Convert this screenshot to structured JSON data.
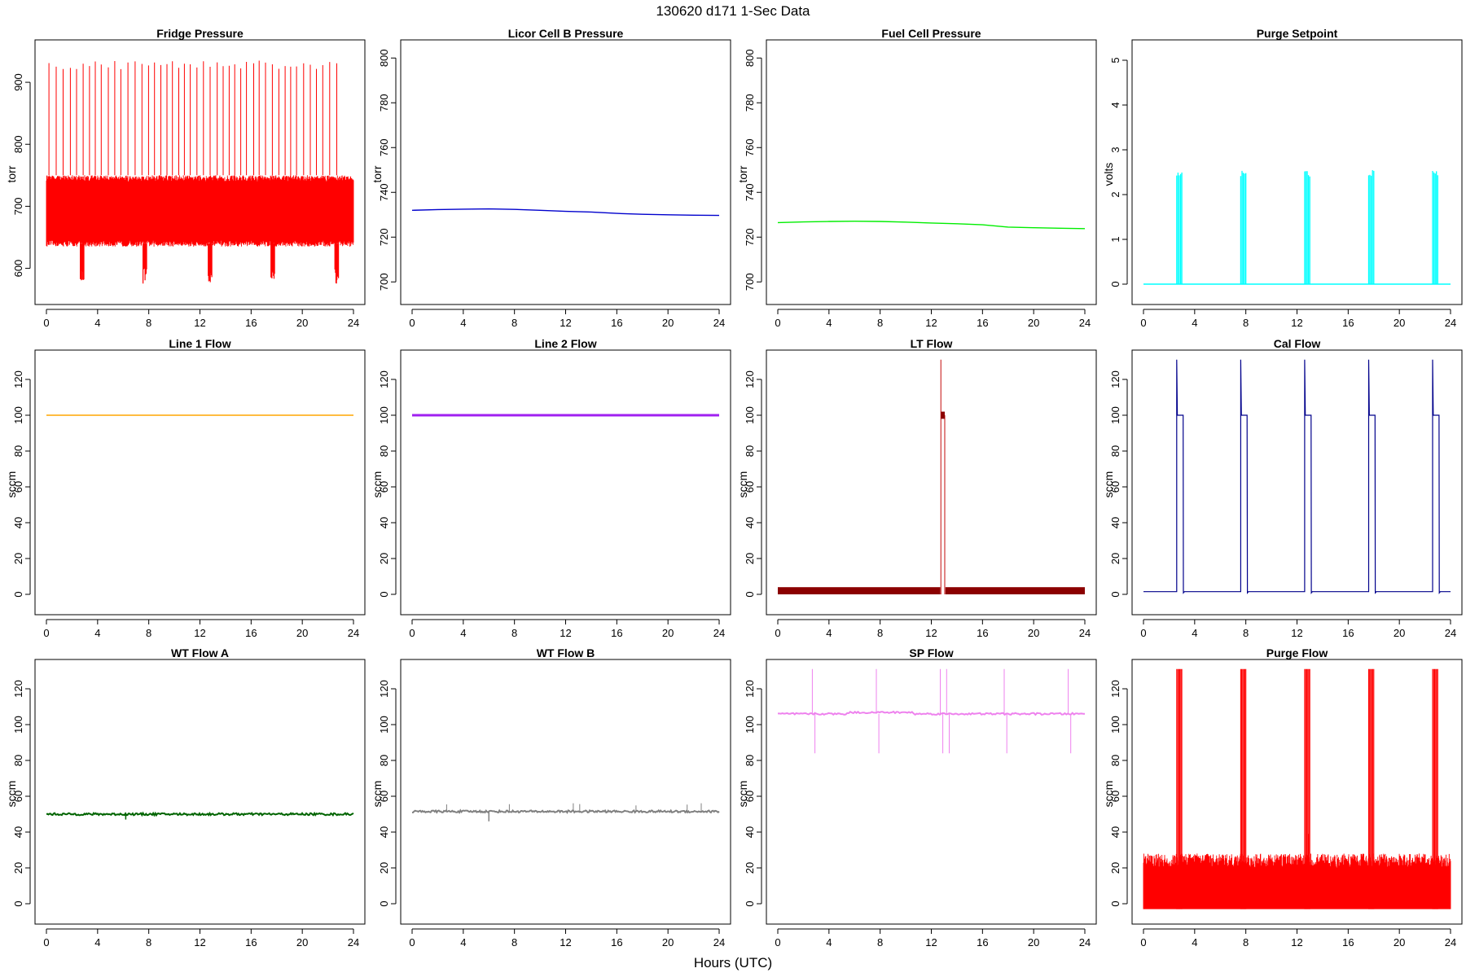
{
  "figure": {
    "title": "130620   d171   1-Sec Data",
    "xlabel": "Hours (UTC)"
  },
  "chart_data": [
    {
      "title": "Fridge Pressure",
      "ylabel": "torr",
      "type": "line",
      "color": "#ff0000",
      "kind": "fridge",
      "xlim": [
        0,
        24
      ],
      "ylim": [
        560,
        950
      ],
      "xticks": [
        0,
        4,
        8,
        12,
        16,
        20,
        24
      ],
      "yticks": [
        600,
        700,
        800,
        900
      ],
      "band": [
        635,
        750
      ],
      "spikes_peak": 935,
      "dips_at": [
        2.8,
        7.7,
        12.8,
        17.7,
        22.7
      ],
      "dips_min": 575
    },
    {
      "title": "Licor Cell B Pressure",
      "ylabel": "torr",
      "type": "line",
      "color": "#0000cd",
      "kind": "line",
      "xlim": [
        0,
        24
      ],
      "ylim": [
        695,
        803
      ],
      "xticks": [
        0,
        4,
        8,
        12,
        16,
        20,
        24
      ],
      "yticks": [
        700,
        720,
        740,
        760,
        780,
        800
      ],
      "x": [
        0,
        2,
        4,
        6,
        8,
        10,
        12,
        14,
        16,
        18,
        20,
        22,
        24
      ],
      "y": [
        732,
        732.3,
        732.5,
        732.6,
        732.4,
        732,
        731.5,
        731.2,
        730.6,
        730.2,
        730,
        729.8,
        729.7
      ]
    },
    {
      "title": "Fuel Cell Pressure",
      "ylabel": "torr",
      "type": "line",
      "color": "#00ee00",
      "kind": "line",
      "xlim": [
        0,
        24
      ],
      "ylim": [
        695,
        803
      ],
      "xticks": [
        0,
        4,
        8,
        12,
        16,
        20,
        24
      ],
      "yticks": [
        700,
        720,
        740,
        760,
        780,
        800
      ],
      "x": [
        0,
        2,
        4,
        6,
        8,
        10,
        12,
        14,
        16,
        18,
        20,
        22,
        24
      ],
      "y": [
        726.5,
        726.8,
        727,
        727.1,
        727,
        726.7,
        726.3,
        726,
        725.5,
        724.5,
        724.2,
        724,
        723.8
      ]
    },
    {
      "title": "Purge Setpoint",
      "ylabel": "volts",
      "type": "line",
      "color": "#00ffff",
      "kind": "pulses",
      "xlim": [
        0,
        24
      ],
      "ylim": [
        -0.2,
        5.2
      ],
      "xticks": [
        0,
        4,
        8,
        12,
        16,
        20,
        24
      ],
      "yticks": [
        0,
        1,
        2,
        3,
        4,
        5
      ],
      "baseline": 0,
      "pulse_level": 2.5,
      "pulse_starts": [
        2.6,
        7.6,
        12.6,
        17.6,
        22.6
      ],
      "pulse_width": 0.4
    },
    {
      "title": "Line 1 Flow",
      "ylabel": "sccm",
      "type": "line",
      "color": "#ffa500",
      "kind": "flat",
      "xlim": [
        0,
        24
      ],
      "ylim": [
        -5,
        130
      ],
      "xticks": [
        0,
        4,
        8,
        12,
        16,
        20,
        24
      ],
      "yticks": [
        0,
        20,
        40,
        60,
        80,
        100,
        120
      ],
      "level": 100
    },
    {
      "title": "Line 2 Flow",
      "ylabel": "sccm",
      "type": "line",
      "color": "#a020f0",
      "kind": "flat",
      "xlim": [
        0,
        24
      ],
      "ylim": [
        -5,
        130
      ],
      "xticks": [
        0,
        4,
        8,
        12,
        16,
        20,
        24
      ],
      "yticks": [
        0,
        20,
        40,
        60,
        80,
        100,
        120
      ],
      "level": 100
    },
    {
      "title": "LT Flow",
      "ylabel": "sccm",
      "type": "line",
      "color": "#8b0000",
      "kind": "ltflow",
      "xlim": [
        0,
        24
      ],
      "ylim": [
        -5,
        130
      ],
      "xticks": [
        0,
        4,
        8,
        12,
        16,
        20,
        24
      ],
      "yticks": [
        0,
        20,
        40,
        60,
        80,
        100,
        120
      ],
      "band": [
        0,
        4
      ],
      "spike_at": 12.8,
      "spike_level": 100
    },
    {
      "title": "Cal Flow",
      "ylabel": "sccm",
      "type": "line",
      "color": "#00008b",
      "kind": "calflow",
      "xlim": [
        0,
        24
      ],
      "ylim": [
        -5,
        130
      ],
      "xticks": [
        0,
        4,
        8,
        12,
        16,
        20,
        24
      ],
      "yticks": [
        0,
        20,
        40,
        60,
        80,
        100,
        120
      ],
      "baseline": 1.5,
      "pulse_level": 100,
      "pulse_starts": [
        2.6,
        7.6,
        12.6,
        17.6,
        22.6
      ],
      "pulse_width": 0.5
    },
    {
      "title": "WT Flow A",
      "ylabel": "sccm",
      "type": "line",
      "color": "#006400",
      "kind": "flatnoise",
      "xlim": [
        0,
        24
      ],
      "ylim": [
        -5,
        130
      ],
      "xticks": [
        0,
        4,
        8,
        12,
        16,
        20,
        24
      ],
      "yticks": [
        0,
        20,
        40,
        60,
        80,
        100,
        120
      ],
      "level": 50,
      "dip_at": 6.2,
      "dip_level": 47
    },
    {
      "title": "WT Flow B",
      "ylabel": "sccm",
      "type": "line",
      "color": "#808080",
      "kind": "flatnoise",
      "xlim": [
        0,
        24
      ],
      "ylim": [
        -5,
        130
      ],
      "xticks": [
        0,
        4,
        8,
        12,
        16,
        20,
        24
      ],
      "yticks": [
        0,
        20,
        40,
        60,
        80,
        100,
        120
      ],
      "level": 51.5,
      "dip_at": 6.0,
      "dip_level": 46,
      "spikes_at": [
        2.7,
        7.6,
        12.6,
        13.1,
        17.5,
        21.5,
        22.6
      ],
      "spike_level": 57
    },
    {
      "title": "SP Flow",
      "ylabel": "sccm",
      "type": "line",
      "color": "#ee82ee",
      "kind": "spflow",
      "xlim": [
        0,
        24
      ],
      "ylim": [
        -5,
        130
      ],
      "xticks": [
        0,
        4,
        8,
        12,
        16,
        20,
        24
      ],
      "yticks": [
        0,
        20,
        40,
        60,
        80,
        100,
        120
      ],
      "level": 106,
      "spikes_at": [
        2.7,
        7.7,
        12.7,
        13.2,
        17.7,
        22.7
      ],
      "dips_level": 84
    },
    {
      "title": "Purge Flow",
      "ylabel": "sccm",
      "type": "line",
      "color": "#ff0000",
      "kind": "purgeflow",
      "xlim": [
        0,
        24
      ],
      "ylim": [
        -5,
        130
      ],
      "xticks": [
        0,
        4,
        8,
        12,
        16,
        20,
        24
      ],
      "yticks": [
        0,
        20,
        40,
        60,
        80,
        100,
        120
      ],
      "band": [
        -3,
        28
      ],
      "pulse_starts": [
        2.6,
        7.6,
        12.6,
        17.6,
        22.6
      ],
      "pulse_width": 0.4
    }
  ]
}
